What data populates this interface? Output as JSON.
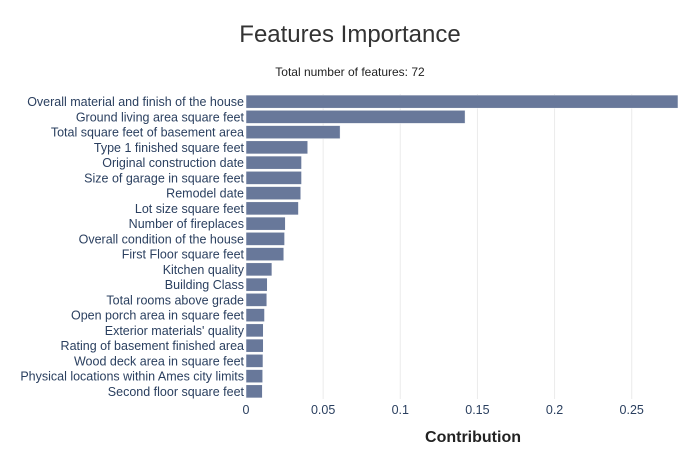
{
  "chart_data": {
    "type": "bar",
    "orientation": "horizontal",
    "title": "Features Importance",
    "subtitle": "Total number of features: 72",
    "xlabel": "Contribution",
    "xlim": [
      0,
      0.28
    ],
    "xticks": [
      0,
      0.05,
      0.1,
      0.15,
      0.2,
      0.25
    ],
    "xtick_labels": [
      "0",
      "0.05",
      "0.1",
      "0.15",
      "0.2",
      "0.25"
    ],
    "grid": true,
    "bar_color": "#68789a",
    "categories": [
      "Overall material and finish of the house",
      "Ground living area square feet",
      "Total square feet of basement area",
      "Type 1 finished square feet",
      "Original construction date",
      "Size of garage in square feet",
      "Remodel date",
      "Lot size square feet",
      "Number of fireplaces",
      "Overall condition of the house",
      "First Floor square feet",
      "Kitchen quality",
      "Building Class",
      "Total rooms above grade",
      "Open porch area in square feet",
      "Exterior materials' quality",
      "Rating of basement finished area",
      "Wood deck area in square feet",
      "Physical locations within Ames city limits",
      "Second floor square feet"
    ],
    "values": [
      0.28,
      0.142,
      0.061,
      0.04,
      0.036,
      0.036,
      0.0355,
      0.034,
      0.0255,
      0.025,
      0.0245,
      0.0168,
      0.0138,
      0.0135,
      0.012,
      0.0112,
      0.0112,
      0.011,
      0.0108,
      0.0106
    ]
  }
}
